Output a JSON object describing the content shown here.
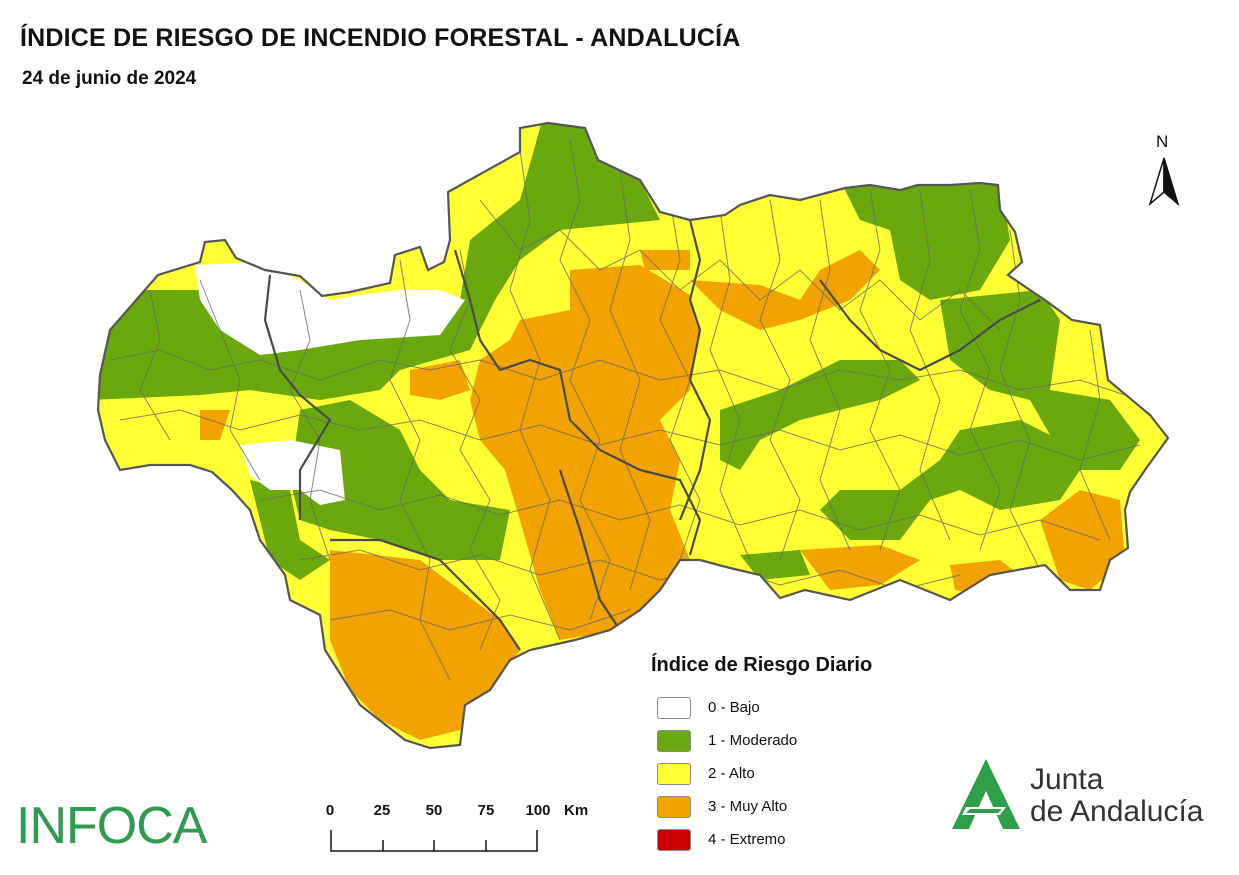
{
  "header": {
    "title": "ÍNDICE DE RIESGO DE INCENDIO FORESTAL - ANDALUCÍA",
    "date": "24 de junio de 2024"
  },
  "north_arrow": {
    "label": "N"
  },
  "legend": {
    "title": "Índice de Riesgo Diario",
    "items": [
      {
        "label": "0 - Bajo",
        "color": "#ffffff"
      },
      {
        "label": "1 - Moderado",
        "color": "#6aa80d"
      },
      {
        "label": "2 - Alto",
        "color": "#ffff33"
      },
      {
        "label": "3 - Muy Alto",
        "color": "#f2a300"
      },
      {
        "label": "4 - Extremo",
        "color": "#cc0000"
      }
    ]
  },
  "scale_bar": {
    "ticks": [
      "0",
      "25",
      "50",
      "75",
      "100"
    ],
    "unit": "Km"
  },
  "logos": {
    "infoca": "INFOCA",
    "junta_line1": "Junta",
    "junta_line2": "de Andalucía"
  }
}
